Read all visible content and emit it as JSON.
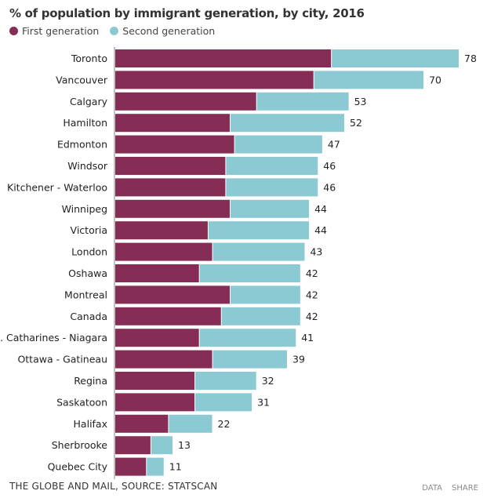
{
  "chart_data": {
    "type": "bar",
    "orientation": "horizontal",
    "stacked": true,
    "title": "% of population by immigrant generation, by city, 2016",
    "categories": [
      "Toronto",
      "Vancouver",
      "Calgary",
      "Hamilton",
      "Edmonton",
      "Windsor",
      "Kitchener - Waterloo",
      "Winnipeg",
      "Victoria",
      "London",
      "Oshawa",
      "Montreal",
      "Canada",
      "St. Catharines - Niagara",
      "Ottawa - Gatineau",
      "Regina",
      "Saskatoon",
      "Halifax",
      "Sherbrooke",
      "Quebec City"
    ],
    "series": [
      {
        "name": "First generation",
        "color": "#852d54",
        "values": [
          49,
          45,
          32,
          26,
          27,
          25,
          25,
          26,
          21,
          22,
          19,
          26,
          24,
          19,
          22,
          18,
          18,
          12,
          8,
          7
        ]
      },
      {
        "name": "Second generation",
        "color": "#8ccad3",
        "values": [
          29,
          25,
          21,
          26,
          20,
          21,
          21,
          18,
          23,
          21,
          23,
          16,
          18,
          22,
          17,
          14,
          13,
          10,
          5,
          4
        ]
      }
    ],
    "totals": [
      78,
      70,
      53,
      52,
      47,
      46,
      46,
      44,
      44,
      43,
      42,
      42,
      42,
      41,
      39,
      32,
      31,
      22,
      13,
      11
    ],
    "xlim": [
      0,
      78
    ],
    "grid": false,
    "legend": "top-left"
  },
  "footer": {
    "source": "THE GLOBE AND MAIL, SOURCE: STATSCAN",
    "data_link": "DATA",
    "share_link": "SHARE"
  }
}
